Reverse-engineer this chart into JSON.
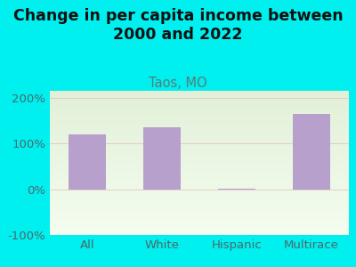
{
  "title": "Change in per capita income between\n2000 and 2022",
  "subtitle": "Taos, MO",
  "categories": [
    "All",
    "White",
    "Hispanic",
    "Multirace"
  ],
  "values": [
    120,
    135,
    2,
    165
  ],
  "bar_color": "#b8a0cc",
  "background_color": "#00efef",
  "ylim": [
    -100,
    215
  ],
  "yticks": [
    -100,
    0,
    100,
    200
  ],
  "yticklabels": [
    "-100%",
    "0%",
    "100%",
    "200%"
  ],
  "title_fontsize": 12.5,
  "subtitle_fontsize": 10.5,
  "tick_fontsize": 9.5,
  "subtitle_color": "#5a7a7a",
  "tick_color": "#4a6a6a",
  "title_color": "#111111",
  "grid_color": "#e0c8c8",
  "plot_bg_color_top": "#e2f0d8",
  "plot_bg_color_bot": "#f4fdf0"
}
